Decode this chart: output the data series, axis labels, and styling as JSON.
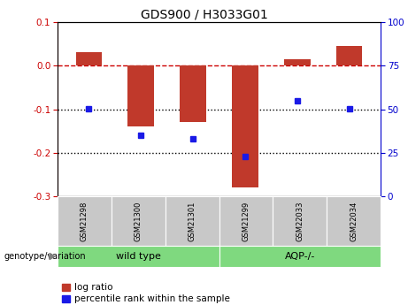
{
  "title": "GDS900 / H3033G01",
  "samples": [
    "GSM21298",
    "GSM21300",
    "GSM21301",
    "GSM21299",
    "GSM22033",
    "GSM22034"
  ],
  "log_ratio": [
    0.03,
    -0.14,
    -0.13,
    -0.28,
    0.015,
    0.045
  ],
  "percentile_rank": [
    50,
    35,
    33,
    23,
    55,
    50
  ],
  "bar_color": "#C0392B",
  "dot_color": "#1A1AE6",
  "ylim_left": [
    -0.3,
    0.1
  ],
  "ylim_right": [
    0,
    100
  ],
  "yticks_left": [
    -0.3,
    -0.2,
    -0.1,
    0.0,
    0.1
  ],
  "yticks_right": [
    0,
    25,
    50,
    75,
    100
  ],
  "hline_zero_color": "#CC0000",
  "hline_dotted_color": "black",
  "left_axis_color": "#CC0000",
  "right_axis_color": "#0000CC",
  "bar_width": 0.5,
  "legend_log_ratio": "log ratio",
  "legend_percentile": "percentile rank within the sample",
  "genotype_label": "genotype/variation",
  "wt_label": "wild type",
  "aqp_label": "AQP-/-",
  "sample_box_color": "#C8C8C8",
  "group_box_color": "#7FD97F",
  "fig_width": 4.61,
  "fig_height": 3.45,
  "fig_dpi": 100
}
